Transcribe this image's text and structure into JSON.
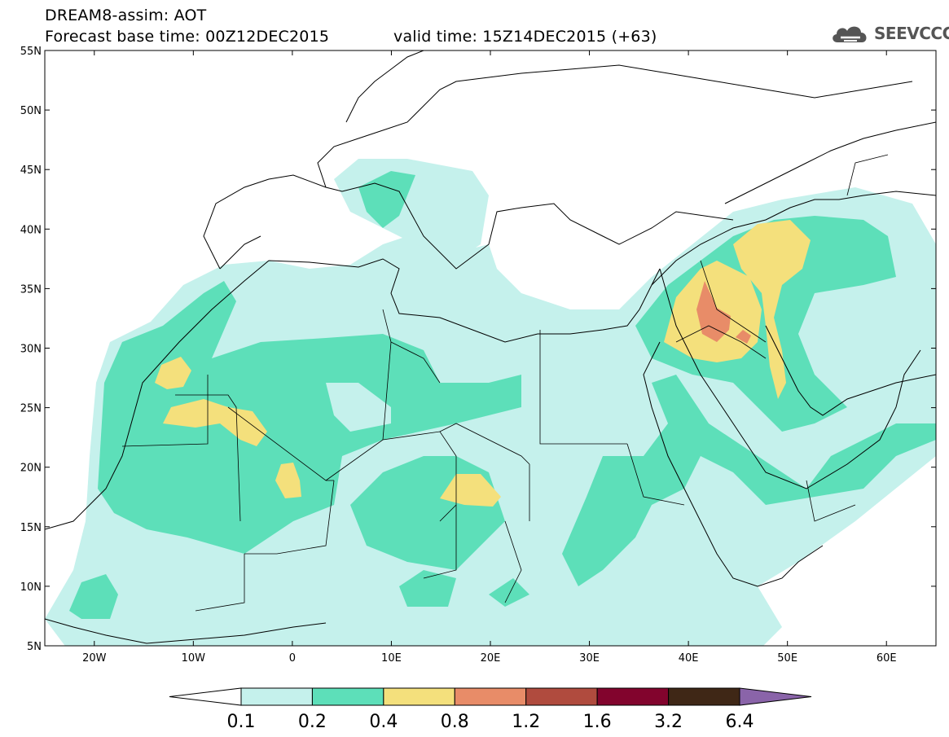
{
  "header": {
    "title": "DREAM8-assim: AOT",
    "base_time": "Forecast base time: 00Z12DEC2015",
    "valid_time": "valid time: 15Z14DEC2015 (+63)"
  },
  "logo": {
    "text": "SEEVCCC",
    "icon": "cloud-icon"
  },
  "map": {
    "lat_labels": [
      "55N",
      "50N",
      "45N",
      "40N",
      "35N",
      "30N",
      "25N",
      "20N",
      "15N",
      "10N",
      "5N"
    ],
    "lon_labels": [
      "20W",
      "10W",
      "0",
      "10E",
      "20E",
      "30E",
      "40E",
      "50E",
      "60E"
    ],
    "lat_range": [
      5,
      55
    ],
    "lon_range": [
      -25,
      65
    ]
  },
  "legend": {
    "labels": [
      "0.1",
      "0.2",
      "0.4",
      "0.8",
      "1.2",
      "1.6",
      "3.2",
      "6.4"
    ],
    "colors": [
      "#ffffff",
      "#c5f1ec",
      "#5ddfb9",
      "#f4e07c",
      "#e88c68",
      "#b04b3e",
      "#82042d",
      "#3f2716",
      "#8a64a9"
    ]
  },
  "colors": {
    "level1": "#c5f1ec",
    "level2": "#5ddfb9",
    "level3": "#f4e07c",
    "level4": "#e88c68"
  }
}
